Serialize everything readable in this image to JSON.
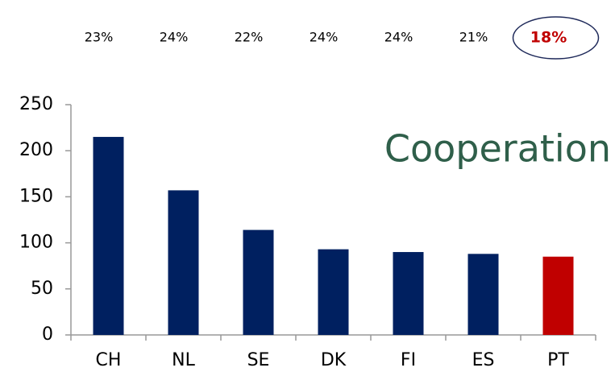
{
  "chart_data": {
    "type": "bar",
    "title": "Cooperation",
    "annotations": [
      "23%",
      "24%",
      "22%",
      "24%",
      "24%",
      "21%",
      "18%"
    ],
    "categories": [
      "CH",
      "NL",
      "SE",
      "DK",
      "FI",
      "ES",
      "PT"
    ],
    "values": [
      215,
      157,
      114,
      93,
      90,
      88,
      85
    ],
    "colors": [
      "#002060",
      "#002060",
      "#002060",
      "#002060",
      "#002060",
      "#002060",
      "#c00000"
    ],
    "ylim": [
      0,
      250
    ],
    "yticks": [
      0,
      50,
      100,
      150,
      200,
      250
    ],
    "grid": false
  }
}
